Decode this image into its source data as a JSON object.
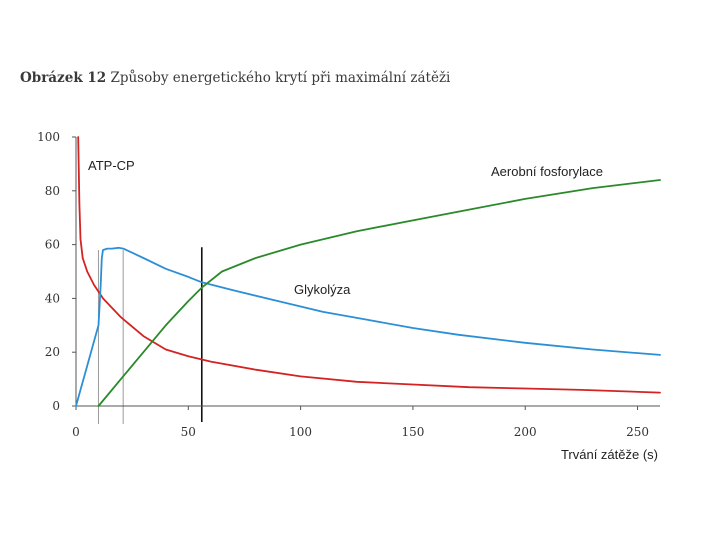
{
  "caption": {
    "prefix": "Obrázek 12",
    "text": " Způsoby energetického krytí při maximální zátěži"
  },
  "chart_data": {
    "type": "line",
    "title": "Obrázek 12 Způsoby energetického krytí při maximální zátěži",
    "xlabel": "Trvání zátěže (s)",
    "ylabel": "",
    "xlim": [
      0,
      260
    ],
    "ylim": [
      0,
      100
    ],
    "x_ticks": [
      0,
      50,
      100,
      150,
      200,
      250
    ],
    "y_ticks": [
      0,
      20,
      40,
      60,
      80,
      100
    ],
    "grid": false,
    "vlines": [
      {
        "x": 10,
        "style": "thin-gray"
      },
      {
        "x": 21,
        "style": "thin-gray"
      },
      {
        "x": 56,
        "style": "black"
      }
    ],
    "series": [
      {
        "name": "ATP-CP",
        "color": "#d42323",
        "points": [
          [
            1,
            100
          ],
          [
            1.5,
            75
          ],
          [
            2,
            62
          ],
          [
            3,
            55
          ],
          [
            5,
            50
          ],
          [
            8,
            45
          ],
          [
            12,
            40
          ],
          [
            20,
            33
          ],
          [
            30,
            26
          ],
          [
            40,
            21
          ],
          [
            50,
            18.5
          ],
          [
            60,
            16.5
          ],
          [
            80,
            13.5
          ],
          [
            100,
            11
          ],
          [
            125,
            9
          ],
          [
            150,
            8
          ],
          [
            175,
            7
          ],
          [
            200,
            6.5
          ],
          [
            225,
            6
          ],
          [
            260,
            5
          ]
        ]
      },
      {
        "name": "Glykolýza",
        "color": "#2c8fd6",
        "points": [
          [
            0,
            0
          ],
          [
            4,
            12
          ],
          [
            8,
            24
          ],
          [
            10,
            30
          ],
          [
            11,
            45
          ],
          [
            11.5,
            55
          ],
          [
            12,
            58
          ],
          [
            14,
            58.5
          ],
          [
            16,
            58.5
          ],
          [
            19,
            58.8
          ],
          [
            21,
            58.5
          ],
          [
            25,
            57
          ],
          [
            30,
            55
          ],
          [
            40,
            51
          ],
          [
            50,
            48
          ],
          [
            56,
            46
          ],
          [
            70,
            43
          ],
          [
            90,
            39
          ],
          [
            110,
            35
          ],
          [
            130,
            32
          ],
          [
            150,
            29
          ],
          [
            170,
            26.5
          ],
          [
            200,
            23.5
          ],
          [
            230,
            21
          ],
          [
            260,
            19
          ]
        ]
      },
      {
        "name": "Aerobní fosforylace",
        "color": "#2a8a2a",
        "points": [
          [
            10,
            0
          ],
          [
            20,
            10
          ],
          [
            30,
            20
          ],
          [
            40,
            30
          ],
          [
            50,
            39
          ],
          [
            56,
            44
          ],
          [
            65,
            50
          ],
          [
            80,
            55
          ],
          [
            100,
            60
          ],
          [
            125,
            65
          ],
          [
            150,
            69
          ],
          [
            175,
            73
          ],
          [
            200,
            77
          ],
          [
            230,
            81
          ],
          [
            260,
            84
          ]
        ]
      }
    ],
    "labels": {
      "atp": "ATP-CP",
      "aerobic": "Aerobní fosforylace",
      "glyco": "Glykolýza"
    }
  }
}
